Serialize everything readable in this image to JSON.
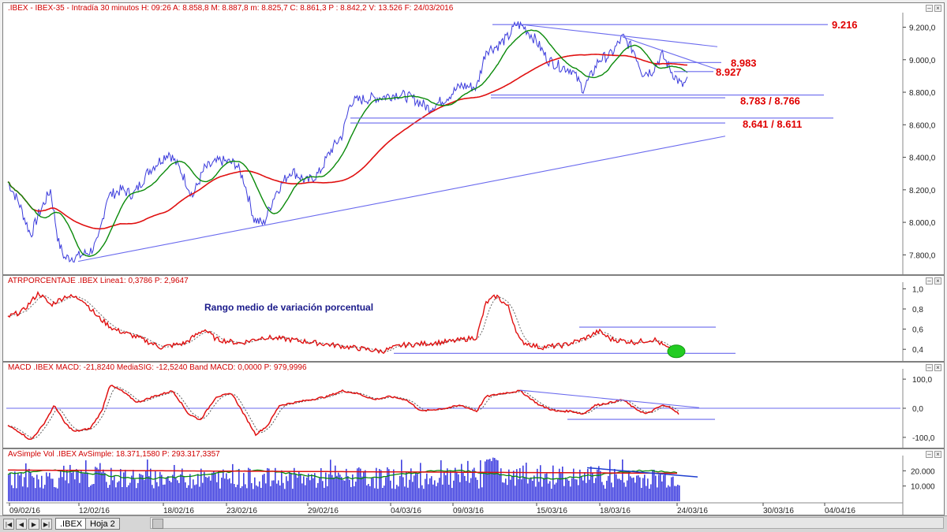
{
  "colors": {
    "price": "#3b3bdc",
    "fast_ma": "#0a8a0a",
    "slow_ma": "#e01010",
    "trendline": "#6a6aee",
    "level_text": "#e00000",
    "indicator": "#e01010",
    "signal": "#555555",
    "volume": "#4040e0"
  },
  "main": {
    "header": ".IBEX - IBEX-35 - Intradía 30 minutos H: 09:26 A: 8.858,8 M: 8.887,8 m: 8.825,7 C: 8.861,3",
    "header_red": "P : 8.842,2",
    "header_tail": "V: 13.526 F: 24/03/2016",
    "yticks": [
      "9.200,0",
      "9.000,0",
      "8.800,0",
      "8.600,0",
      "8.400,0",
      "8.200,0",
      "8.000,0",
      "7.800,0"
    ],
    "levels": [
      "9.216",
      "8.983",
      "8.927",
      "8.783 / 8.766",
      "8.641 / 8.611"
    ]
  },
  "atr": {
    "header": "ATRPORCENTAJE .IBEX Linea1: 0,3786 P: 2,9647",
    "annotation": "Rango medio de variación porcentual",
    "yticks": [
      "1,0",
      "0,8",
      "0,6",
      "0,4"
    ]
  },
  "macd": {
    "header": "MACD .IBEX MACD: -21,8240 MediaSIG: -12,5240 Band MACD: 0,0000 P: 979,9996",
    "yticks": [
      "100,0",
      "0,0",
      "-100,0"
    ]
  },
  "volume": {
    "header": "AvSimple Vol .IBEX AvSimple: 18.371,1580 P: 293.317,3357",
    "yticks": [
      "20.000",
      "10.000"
    ]
  },
  "x_axis": {
    "dates": [
      "09/02/16",
      "12/02/16",
      "18/02/16",
      "23/02/16",
      "29/02/16",
      "04/03/16",
      "09/03/16",
      "15/03/16",
      "18/03/16",
      "24/03/16",
      "30/03/16",
      "04/04/16"
    ]
  },
  "tabs": {
    "active": ".IBEX",
    "other": "Hoja 2"
  },
  "nav": [
    "|◀",
    "◀",
    "▶",
    "▶|"
  ],
  "chart_data": [
    {
      "type": "line",
      "title": ".IBEX - IBEX-35 - Intradía 30 minutos",
      "y_unit": "points",
      "ylim": [
        7700,
        9280
      ],
      "x": [
        "09/02/16",
        "12/02/16",
        "18/02/16",
        "23/02/16",
        "29/02/16",
        "04/03/16",
        "09/03/16",
        "15/03/16",
        "18/03/16",
        "24/03/16"
      ],
      "series": [
        {
          "name": "price",
          "values": [
            7980,
            7800,
            8440,
            8310,
            8700,
            8760,
            8920,
            9000,
            8970,
            8861
          ]
        }
      ],
      "horizontal_levels": [
        9216,
        8983,
        8927,
        8783,
        8766,
        8641,
        8611
      ],
      "grid": false
    },
    {
      "type": "line",
      "title": "ATRPORCENTAJE .IBEX",
      "ylim": [
        0.3,
        1.05
      ],
      "series": [
        {
          "name": "Linea1",
          "last": 0.3786
        }
      ],
      "horizontal_levels": [
        0.62,
        0.36
      ]
    },
    {
      "type": "line",
      "title": "MACD .IBEX",
      "ylim": [
        -130,
        130
      ],
      "series": [
        {
          "name": "MACD",
          "last": -21.824
        },
        {
          "name": "MediaSIG",
          "last": -12.524
        },
        {
          "name": "Band MACD",
          "last": 0.0
        }
      ]
    },
    {
      "type": "bar",
      "title": "AvSimple Vol .IBEX",
      "ylim": [
        0,
        30000
      ],
      "series": [
        {
          "name": "AvSimple",
          "last": 18371.158
        }
      ]
    }
  ]
}
